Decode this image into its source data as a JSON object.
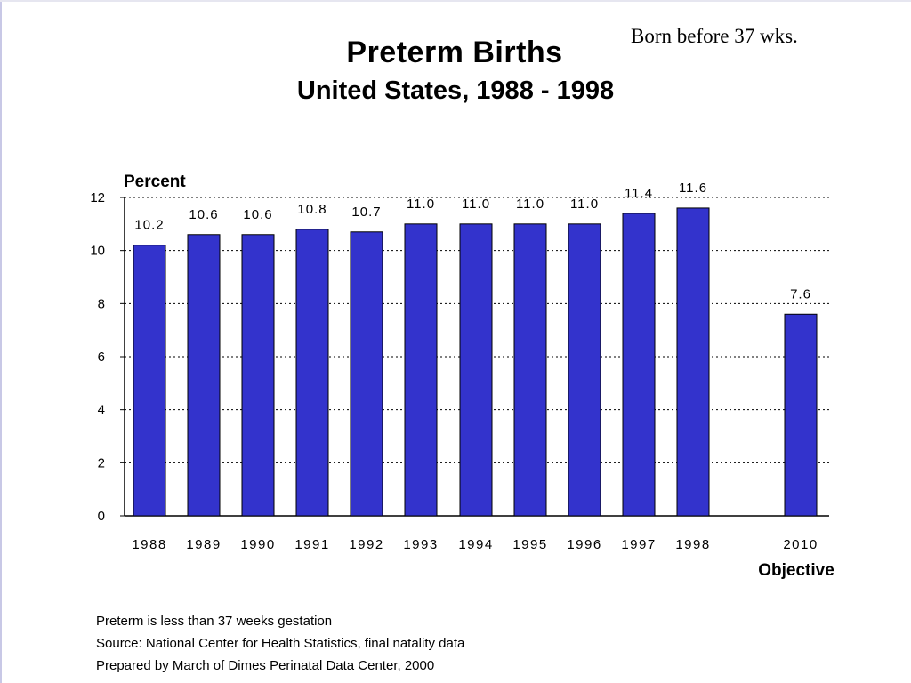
{
  "header_note": "Born before 37 wks.",
  "footnotes": [
    "Preterm is less than 37 weeks gestation",
    "Source: National Center for Health Statistics, final natality data",
    "Prepared by March of Dimes Perinatal Data Center, 2000"
  ],
  "colors": {
    "bar": "#3333cc",
    "bar_outline": "#000000",
    "grid": "#000000"
  },
  "chart_data": {
    "type": "bar",
    "title": "Preterm Births",
    "subtitle": "United States, 1988 - 1998",
    "ylabel": "Percent",
    "xlabel": "",
    "categories": [
      "1988",
      "1989",
      "1990",
      "1991",
      "1992",
      "1993",
      "1994",
      "1995",
      "1996",
      "1997",
      "1998",
      "2010"
    ],
    "values": [
      10.2,
      10.6,
      10.6,
      10.8,
      10.7,
      11.0,
      11.0,
      11.0,
      11.0,
      11.4,
      11.6,
      7.6
    ],
    "data_labels": [
      "10.2",
      "10.6",
      "10.6",
      "10.8",
      "10.7",
      "11.0",
      "11.0",
      "11.0",
      "11.0",
      "11.4",
      "11.6",
      "7.6"
    ],
    "extra_category_label": {
      "category": "2010",
      "text": "Objective"
    },
    "ylim": [
      0,
      12
    ],
    "yticks": [
      "0",
      "2",
      "4",
      "6",
      "8",
      "10",
      "12"
    ],
    "grid": "horizontal dotted",
    "legend": "none"
  }
}
